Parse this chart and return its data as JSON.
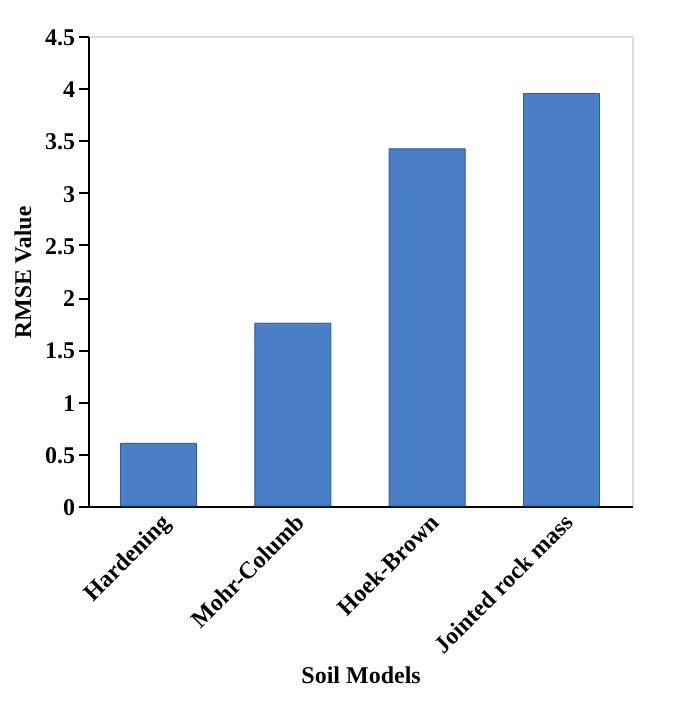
{
  "chart_data": {
    "type": "bar",
    "categories": [
      "Hardening",
      "Mohr-Columb",
      "Hoek-Brown",
      "Jointed rock mass"
    ],
    "values": [
      0.6,
      1.75,
      3.42,
      3.95
    ],
    "color": "#4a7fc8",
    "xlabel": "Soil Models",
    "ylabel": "RMSE Value",
    "ylim": [
      0,
      4.5
    ],
    "yticks": [
      0,
      0.5,
      1,
      1.5,
      2,
      2.5,
      3,
      3.5,
      4,
      4.5
    ],
    "grid": false
  }
}
